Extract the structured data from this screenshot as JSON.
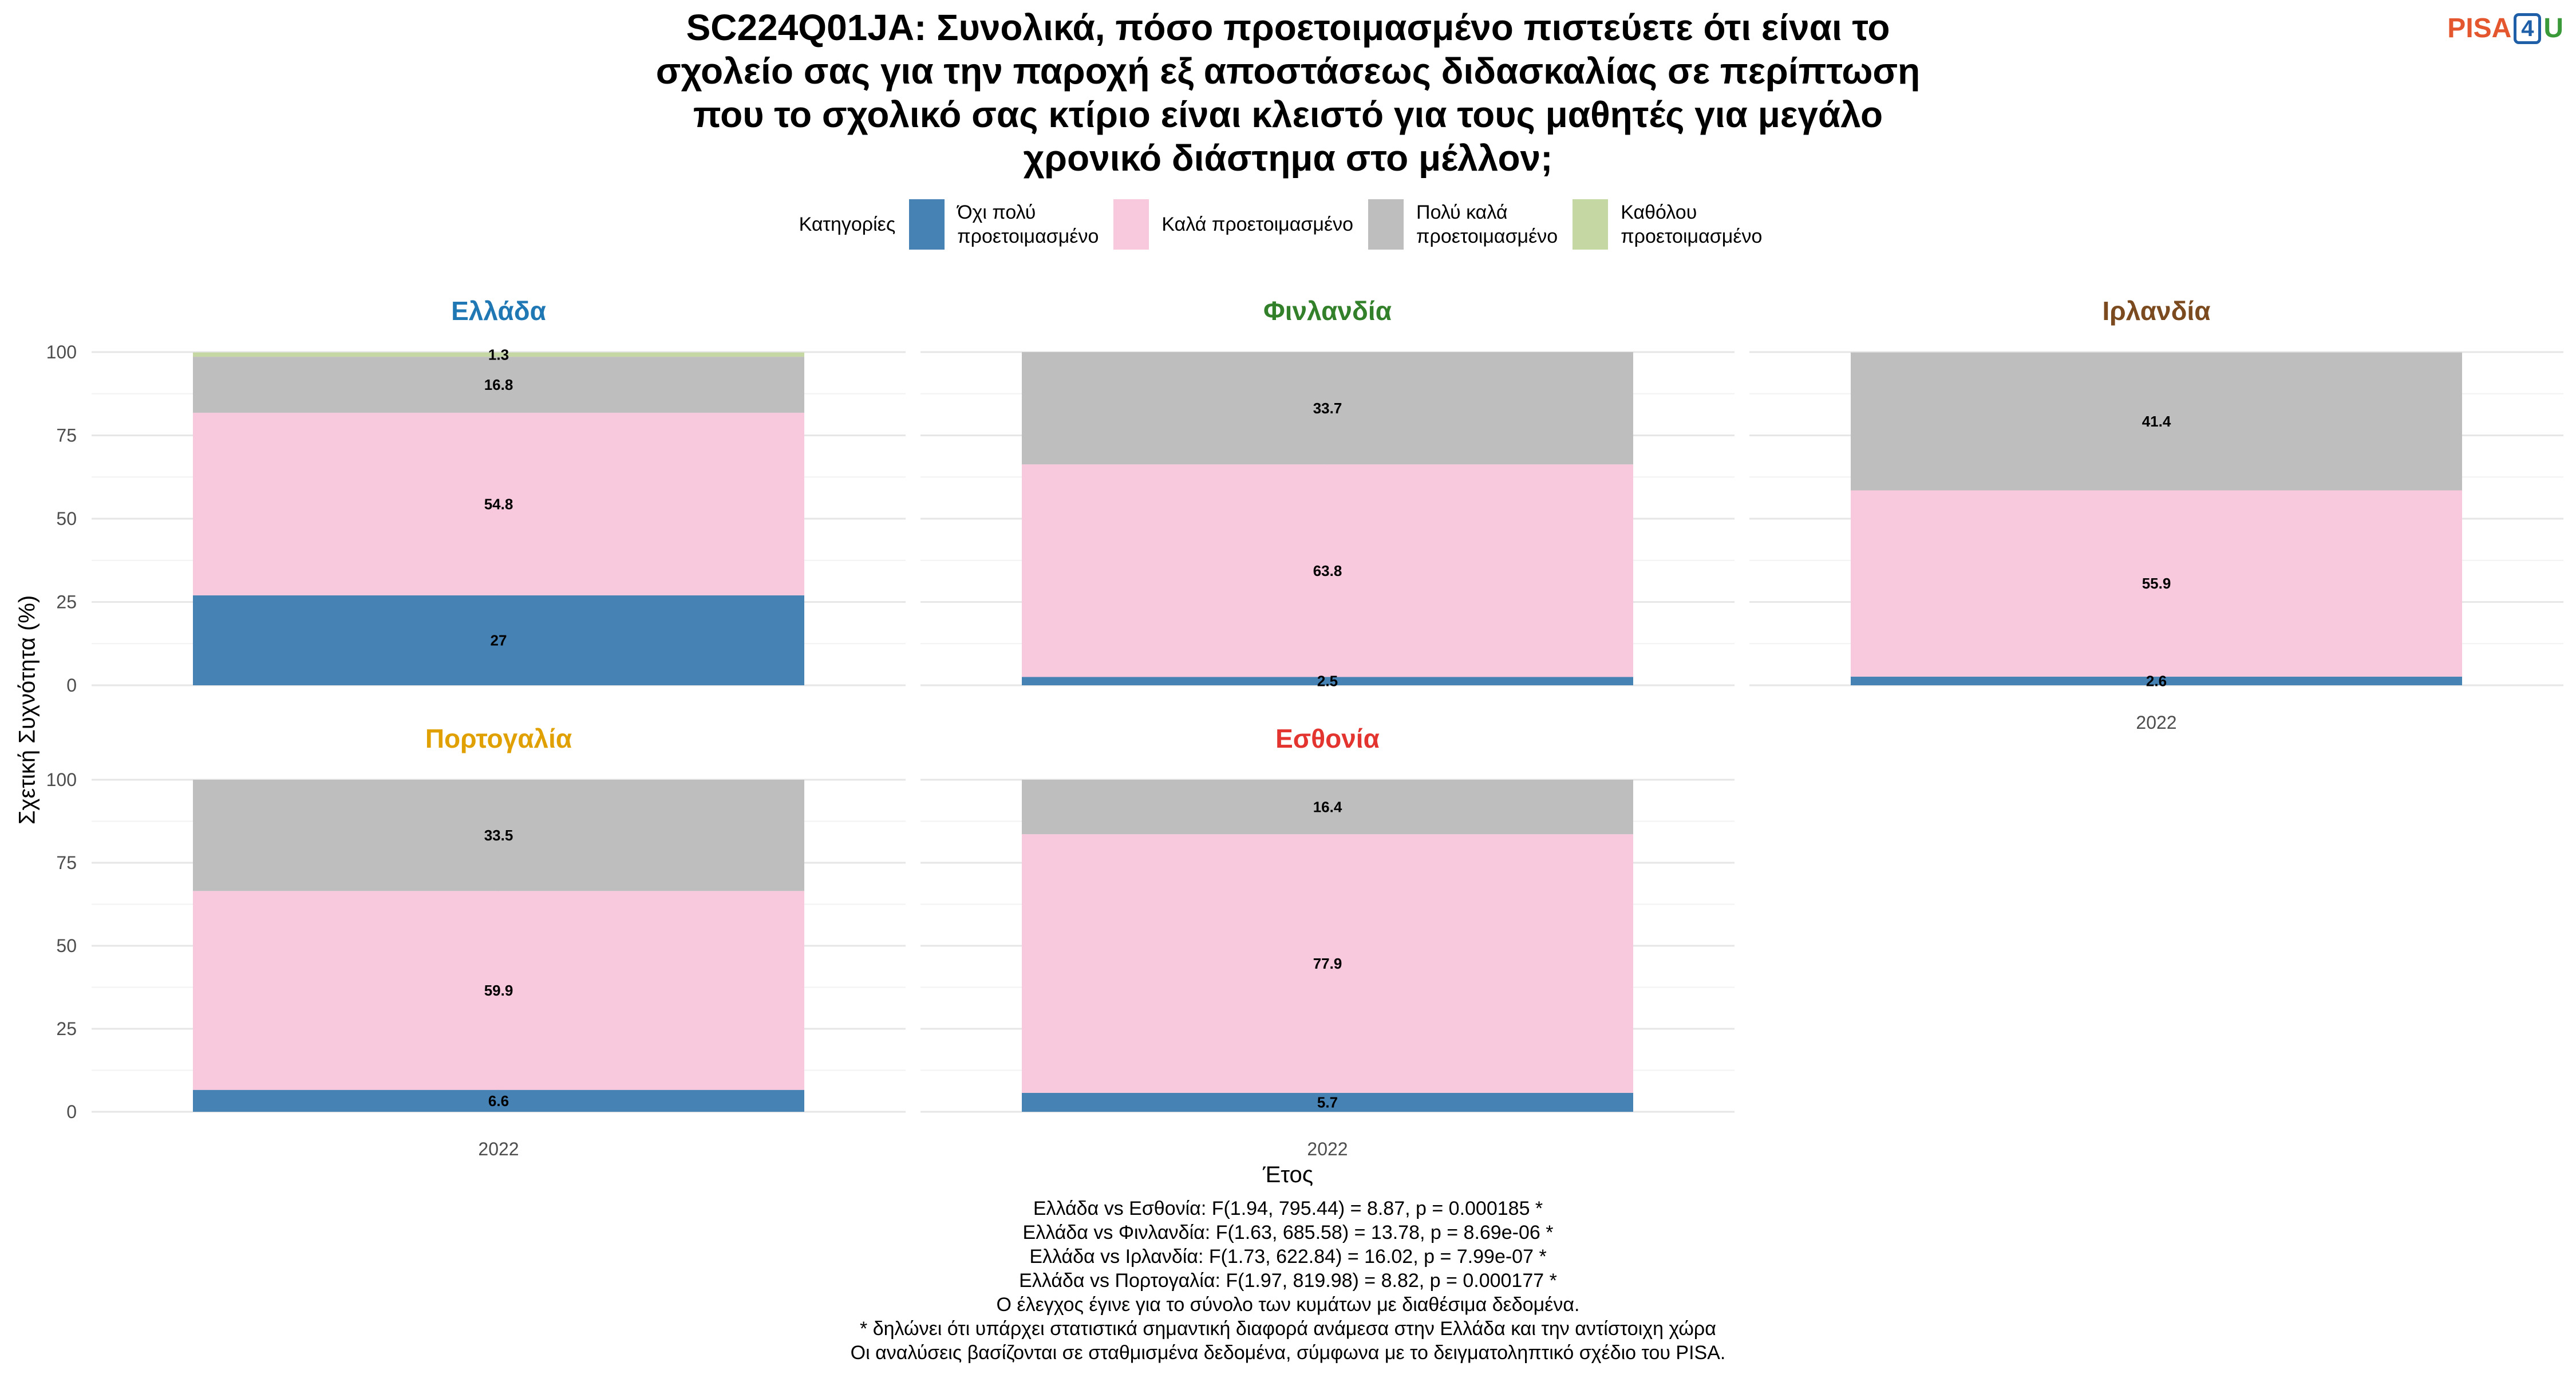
{
  "title_lines": [
    "SC224Q01JA: Συνολικά, πόσο προετοιμασμένο πιστεύετε ότι είναι το",
    "σχολείο σας για την παροχή εξ αποστάσεως διδασκαλίας σε περίπτωση",
    "που το σχολικό σας κτίριο είναι κλειστό για τους μαθητές για μεγάλο",
    "χρονικό διάστημα στο μέλλον;"
  ],
  "logo": {
    "pisa": "PISA",
    "four": "4",
    "u": "U"
  },
  "legend": {
    "title": "Κατηγορίες",
    "items": [
      {
        "label_lines": [
          "Όχι πολύ",
          "προετοιμασμένο"
        ],
        "color": "#4682b4"
      },
      {
        "label_lines": [
          "Καλά προετοιμασμένο"
        ],
        "color": "#f8c8dc"
      },
      {
        "label_lines": [
          "Πολύ καλά",
          "προετοιμασμένο"
        ],
        "color": "#bebebe"
      },
      {
        "label_lines": [
          "Καθόλου",
          "προετοιμασμένο"
        ],
        "color": "#c5d8a4"
      }
    ]
  },
  "chart_data": {
    "type": "bar",
    "stacked": true,
    "xlabel": "Έτος",
    "ylabel": "Σχετική Συχνότητα (%)",
    "ylim": [
      0,
      100
    ],
    "yticks": [
      0,
      25,
      50,
      75,
      100
    ],
    "categories": [
      "2022"
    ],
    "series_order": [
      "Όχι πολύ προετοιμασμένο",
      "Καλά προετοιμασμένο",
      "Πολύ καλά προετοιμασμένο",
      "Καθόλου προετοιμασμένο"
    ],
    "panels": [
      {
        "name": "Ελλάδα",
        "title_color": "#1f78b4",
        "x": "2022",
        "values": [
          27,
          54.8,
          16.8,
          1.3
        ],
        "labels": [
          "27",
          "54.8",
          "16.8",
          "1.3"
        ]
      },
      {
        "name": "Φινλανδία",
        "title_color": "#33802a",
        "x": "2022",
        "values": [
          2.5,
          63.8,
          33.7,
          0
        ],
        "labels": [
          "2.5",
          "63.8",
          "33.7",
          ""
        ]
      },
      {
        "name": "Ιρλανδία",
        "title_color": "#7b4a1e",
        "x": "2022",
        "values": [
          2.6,
          55.9,
          41.4,
          0
        ],
        "labels": [
          "2.6",
          "55.9",
          "41.4",
          ""
        ]
      },
      {
        "name": "Πορτογαλία",
        "title_color": "#e0a000",
        "x": "2022",
        "values": [
          6.6,
          59.9,
          33.5,
          0
        ],
        "labels": [
          "6.6",
          "59.9",
          "33.5",
          ""
        ]
      },
      {
        "name": "Εσθονία",
        "title_color": "#e3342f",
        "x": "2022",
        "values": [
          5.7,
          77.9,
          16.4,
          0
        ],
        "labels": [
          "5.7",
          "77.9",
          "16.4",
          ""
        ]
      }
    ]
  },
  "footnotes": [
    "Ελλάδα vs Εσθονία: F(1.94, 795.44) = 8.87, p = 0.000185 *",
    "Ελλάδα vs Φινλανδία: F(1.63, 685.58) = 13.78, p = 8.69e-06 *",
    "Ελλάδα vs Ιρλανδία: F(1.73, 622.84) = 16.02, p = 7.99e-07 *",
    "Ελλάδα vs Πορτογαλία: F(1.97, 819.98) = 8.82, p = 0.000177 *",
    "Ο έλεγχος έγινε για το σύνολο των κυμάτων με διαθέσιμα δεδομένα.",
    "* δηλώνει ότι υπάρχει στατιστικά σημαντική διαφορά ανάμεσα στην Ελλάδα και την αντίστοιχη χώρα",
    "Οι αναλύσεις βασίζονται σε σταθμισμένα δεδομένα, σύμφωνα με το δειγματοληπτικό σχέδιο του PISA."
  ]
}
